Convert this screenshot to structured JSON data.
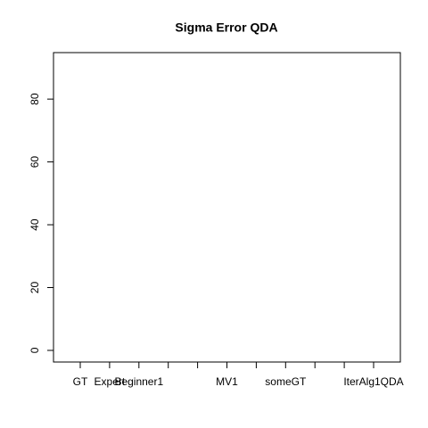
{
  "chart_data": {
    "type": "box",
    "title": "Sigma Error QDA",
    "categories": [
      "GT",
      "Expert",
      "Beginner1",
      null,
      null,
      "MV1",
      null,
      "someGT",
      null,
      null,
      "IterAlg1QDA"
    ],
    "ylim": [
      -3.7,
      94.8
    ],
    "yticks": [
      0,
      20,
      40,
      60,
      80
    ]
  }
}
